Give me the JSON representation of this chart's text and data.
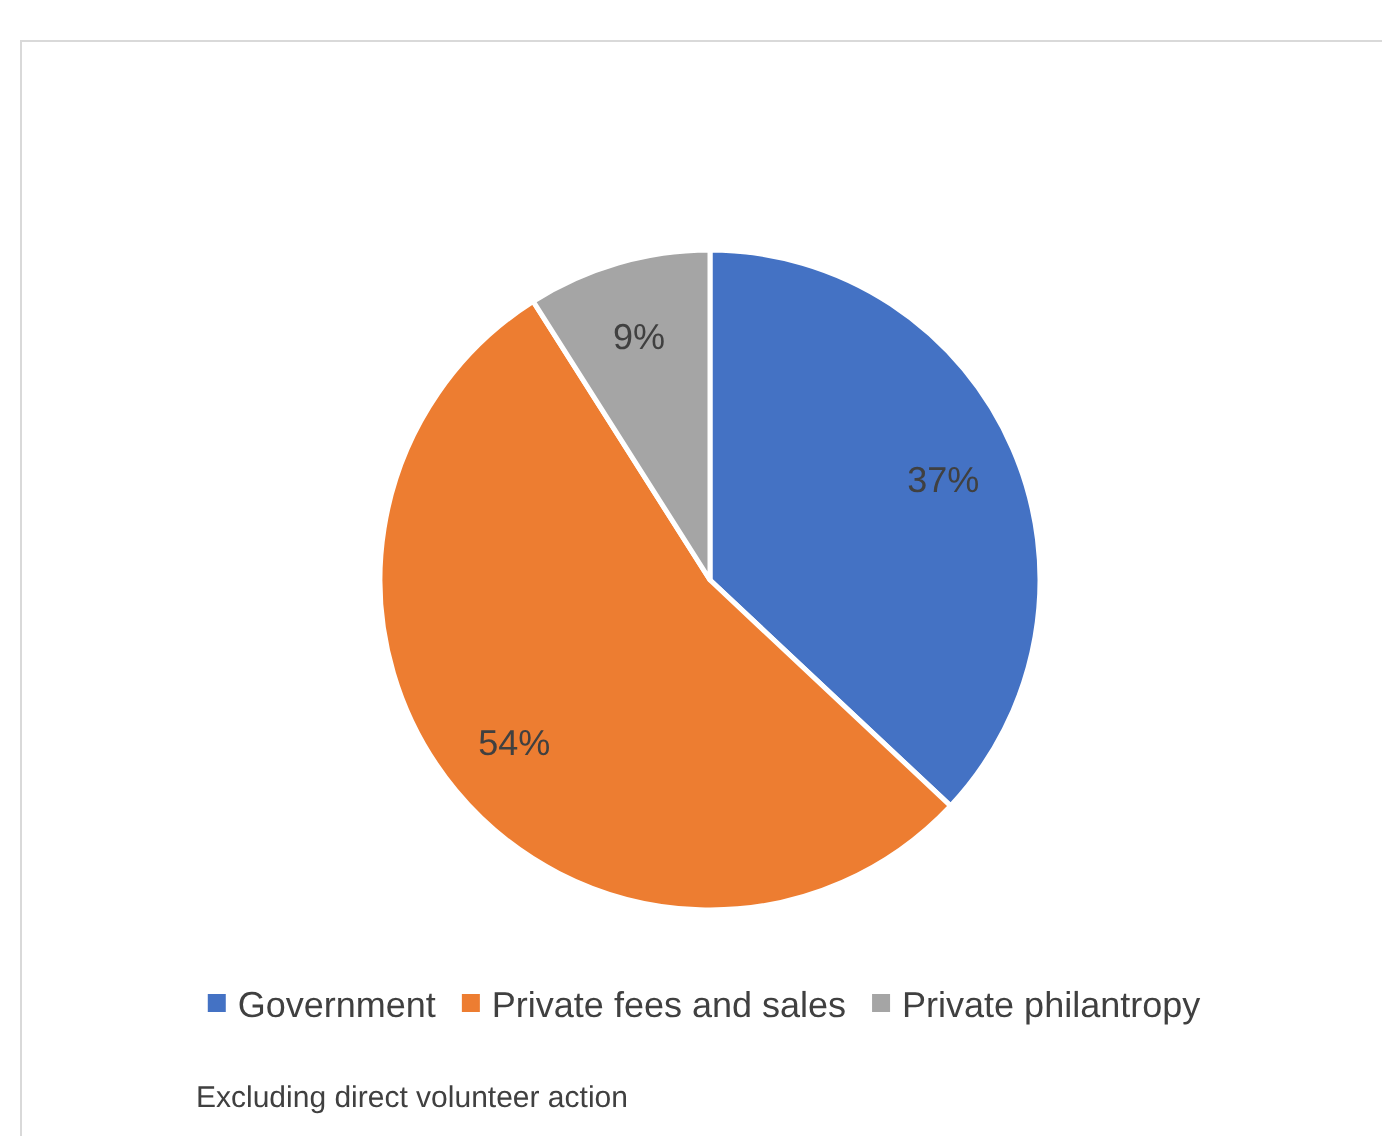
{
  "chart_data": {
    "type": "pie",
    "categories": [
      "Government",
      "Private fees and sales",
      "Private philantropy"
    ],
    "values": [
      37,
      54,
      9
    ],
    "value_labels": [
      "37%",
      "54%",
      "9%"
    ],
    "colors": [
      "#4472c4",
      "#ed7d31",
      "#a5a5a5"
    ],
    "legend": "bottom",
    "annotations": [
      "Excluding direct volunteer action"
    ]
  }
}
